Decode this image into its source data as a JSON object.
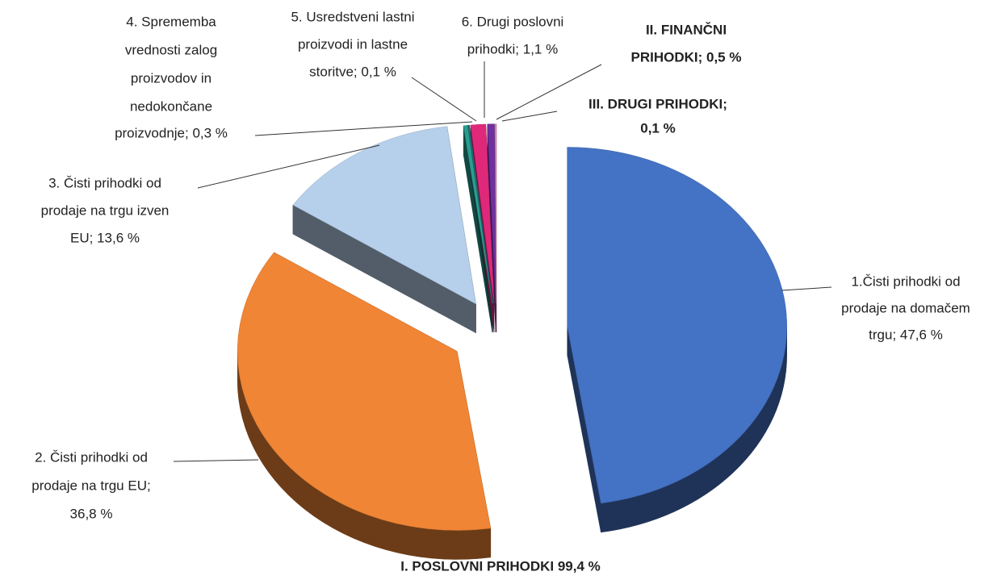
{
  "chart_data": {
    "type": "pie",
    "categories": [
      [
        "1.Čisti prihodki od",
        "prodaje na domačem",
        "trgu; 47,6 %"
      ],
      [
        "2. Čisti prihodki od",
        "prodaje na trgu EU;",
        "36,8 %"
      ],
      [
        "3. Čisti prihodki od",
        "prodaje na trgu izven",
        "EU; 13,6 %"
      ],
      [
        "4. Sprememba",
        "vrednosti zalog",
        "proizvodov in",
        "nedokončane",
        "proizvodnje; 0,3 %"
      ],
      [
        "5. Usredstveni lastni",
        "proizvodi in lastne",
        "storitve; 0,1 %"
      ],
      [
        "6. Drugi poslovni",
        "prihodki; 1,1 %"
      ],
      [
        "II. FINANČNI",
        "PRIHODKI; 0,5 %"
      ],
      [
        "III. DRUGI PRIHODKI;",
        "0,1 %"
      ]
    ],
    "values": [
      47.6,
      36.8,
      13.6,
      0.3,
      0.1,
      1.1,
      0.5,
      0.1
    ],
    "colors": [
      "#4472c4",
      "#f08535",
      "#b6cfea",
      "#2a9d8f",
      "#1f6f78",
      "#e0287a",
      "#7030a0",
      "#e887b5"
    ],
    "label_bold": [
      false,
      false,
      false,
      false,
      false,
      false,
      true,
      true
    ],
    "annotation": "I. POSLOVNI PRIHODKI 99,4 %"
  }
}
